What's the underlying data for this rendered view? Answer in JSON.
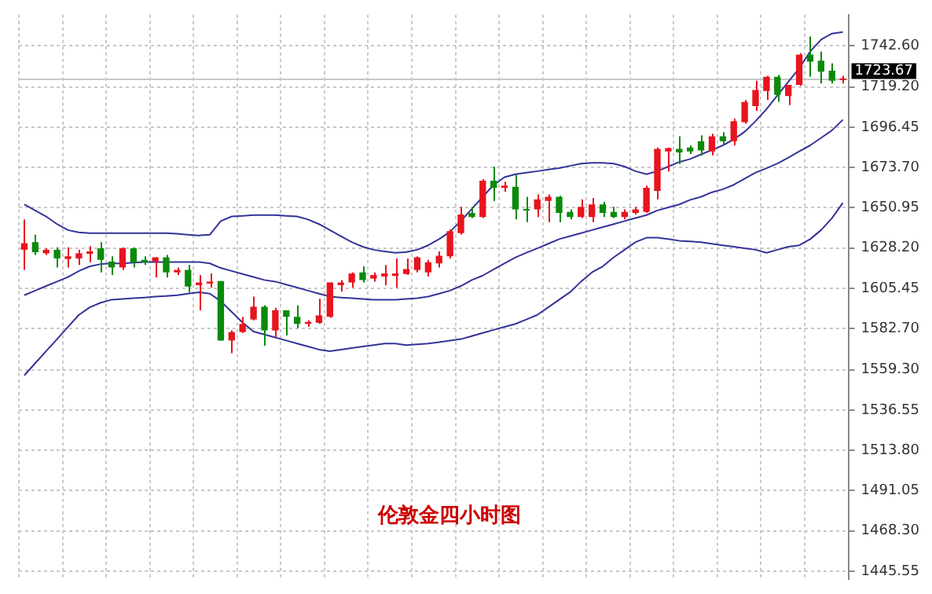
{
  "chart_data": {
    "type": "candlestick",
    "title": "伦敦金四小时图",
    "categories": [
      null,
      null,
      null,
      null,
      null,
      null,
      null,
      null,
      null,
      null,
      null,
      null,
      null,
      null,
      null,
      null,
      null,
      null,
      null,
      null,
      null,
      null,
      null,
      null,
      null,
      null,
      null,
      null,
      null,
      null,
      null,
      null,
      null,
      null,
      null,
      null,
      null,
      null,
      null,
      null,
      null,
      null,
      null,
      null,
      null,
      null,
      null,
      null,
      null,
      null,
      null,
      null,
      null,
      null,
      null,
      null,
      null,
      null,
      null,
      null,
      null,
      null,
      null,
      null,
      null,
      null,
      null,
      null,
      null,
      null,
      null,
      null,
      null,
      null,
      null,
      null
    ],
    "ohlc": [
      [
        1627.2,
        1644.3,
        1615.8,
        1630.9
      ],
      [
        1631.5,
        1635.7,
        1624.3,
        1625.8
      ],
      [
        1625.2,
        1628.0,
        1624.3,
        1627.2
      ],
      [
        1627.2,
        1628.6,
        1617.2,
        1622.3
      ],
      [
        1622.0,
        1628.6,
        1617.2,
        1623.5
      ],
      [
        1622.3,
        1627.2,
        1618.6,
        1625.2
      ],
      [
        1624.9,
        1629.2,
        1620.1,
        1626.3
      ],
      [
        1628.0,
        1631.5,
        1614.4,
        1621.5
      ],
      [
        1620.6,
        1623.5,
        1612.9,
        1617.2
      ],
      [
        1617.2,
        1628.6,
        1615.8,
        1628.0
      ],
      [
        1628.0,
        1628.6,
        1617.2,
        1620.1
      ],
      [
        1621.5,
        1623.5,
        1618.6,
        1620.1
      ],
      [
        1620.6,
        1622.9,
        1611.5,
        1622.9
      ],
      [
        1622.9,
        1624.3,
        1611.5,
        1614.4
      ],
      [
        1614.4,
        1617.2,
        1612.9,
        1615.8
      ],
      [
        1615.8,
        1618.6,
        1603.0,
        1606.4
      ],
      [
        1607.2,
        1612.9,
        1593.0,
        1608.7
      ],
      [
        1608.1,
        1613.8,
        1605.8,
        1609.2
      ],
      [
        1609.5,
        1609.5,
        1575.9,
        1575.9
      ],
      [
        1575.9,
        1581.6,
        1568.8,
        1580.7
      ],
      [
        1580.7,
        1589.3,
        1580.2,
        1585.3
      ],
      [
        1587.8,
        1600.7,
        1587.3,
        1595.0
      ],
      [
        1595.0,
        1595.8,
        1573.0,
        1581.6
      ],
      [
        1581.6,
        1594.4,
        1577.3,
        1593.0
      ],
      [
        1593.0,
        1593.0,
        1578.7,
        1589.3
      ],
      [
        1589.3,
        1595.8,
        1583.0,
        1585.3
      ],
      [
        1585.3,
        1587.3,
        1583.6,
        1586.4
      ],
      [
        1585.9,
        1599.5,
        1585.3,
        1590.1
      ],
      [
        1589.3,
        1608.7,
        1588.7,
        1608.7
      ],
      [
        1607.2,
        1610.1,
        1603.5,
        1608.7
      ],
      [
        1608.7,
        1614.4,
        1605.8,
        1613.8
      ],
      [
        1614.4,
        1617.8,
        1608.7,
        1610.1
      ],
      [
        1610.9,
        1614.4,
        1609.2,
        1612.9
      ],
      [
        1612.1,
        1618.6,
        1607.2,
        1613.8
      ],
      [
        1612.4,
        1622.3,
        1605.8,
        1613.8
      ],
      [
        1613.5,
        1622.3,
        1612.9,
        1616.3
      ],
      [
        1615.8,
        1623.5,
        1614.4,
        1622.9
      ],
      [
        1614.4,
        1621.5,
        1612.1,
        1620.1
      ],
      [
        1619.5,
        1626.3,
        1617.2,
        1623.8
      ],
      [
        1623.5,
        1638.6,
        1622.3,
        1637.7
      ],
      [
        1636.6,
        1651.4,
        1635.7,
        1647.1
      ],
      [
        1648.0,
        1651.4,
        1645.1,
        1645.7
      ],
      [
        1645.7,
        1667.1,
        1645.1,
        1666.2
      ],
      [
        1666.2,
        1674.2,
        1654.8,
        1662.2
      ],
      [
        1662.2,
        1665.7,
        1659.9,
        1663.4
      ],
      [
        1662.8,
        1669.9,
        1644.3,
        1650.0
      ],
      [
        1650.0,
        1657.1,
        1642.8,
        1649.4
      ],
      [
        1650.0,
        1658.5,
        1645.7,
        1655.7
      ],
      [
        1654.8,
        1658.5,
        1642.8,
        1657.1
      ],
      [
        1657.1,
        1657.7,
        1642.8,
        1648.0
      ],
      [
        1648.6,
        1650.0,
        1644.3,
        1645.7
      ],
      [
        1645.7,
        1655.7,
        1645.1,
        1651.4
      ],
      [
        1645.7,
        1656.5,
        1642.8,
        1652.8
      ],
      [
        1652.8,
        1654.2,
        1645.7,
        1648.0
      ],
      [
        1648.6,
        1651.4,
        1645.1,
        1645.7
      ],
      [
        1645.7,
        1650.0,
        1644.3,
        1648.6
      ],
      [
        1648.0,
        1651.4,
        1647.1,
        1650.0
      ],
      [
        1648.6,
        1663.4,
        1648.0,
        1662.2
      ],
      [
        1660.5,
        1685.0,
        1655.7,
        1684.2
      ],
      [
        1682.8,
        1685.0,
        1671.4,
        1684.7
      ],
      [
        1684.2,
        1691.3,
        1675.6,
        1682.2
      ],
      [
        1685.0,
        1686.2,
        1681.3,
        1682.8
      ],
      [
        1688.5,
        1691.9,
        1680.5,
        1683.3
      ],
      [
        1682.8,
        1692.7,
        1680.5,
        1691.3
      ],
      [
        1691.3,
        1693.6,
        1687.0,
        1688.5
      ],
      [
        1688.5,
        1701.3,
        1686.2,
        1699.9
      ],
      [
        1699.3,
        1711.8,
        1698.4,
        1710.7
      ],
      [
        1708.4,
        1722.7,
        1705.6,
        1717.5
      ],
      [
        1717.0,
        1725.5,
        1711.8,
        1724.9
      ],
      [
        1724.9,
        1726.1,
        1710.7,
        1714.7
      ],
      [
        1714.1,
        1720.4,
        1709.0,
        1720.4
      ],
      [
        1720.4,
        1738.3,
        1719.8,
        1737.5
      ],
      [
        1737.5,
        1747.7,
        1724.9,
        1733.5
      ],
      [
        1734.1,
        1739.2,
        1721.2,
        1727.8
      ],
      [
        1728.4,
        1732.6,
        1721.2,
        1722.7
      ],
      [
        1723.2,
        1725.5,
        1721.2,
        1723.67
      ]
    ],
    "colors": [
      "#e8141e",
      "#0a8a0a",
      "#e8141e",
      "#0a8a0a",
      "#e8141e",
      "#e8141e",
      "#e8141e",
      "#0a8a0a",
      "#0a8a0a",
      "#e8141e",
      "#0a8a0a",
      "#0a8a0a",
      "#e8141e",
      "#0a8a0a",
      "#e8141e",
      "#0a8a0a",
      "#e8141e",
      "#e8141e",
      "#0a8a0a",
      "#e8141e",
      "#e8141e",
      "#e8141e",
      "#0a8a0a",
      "#e8141e",
      "#0a8a0a",
      "#0a8a0a",
      "#e8141e",
      "#e8141e",
      "#e8141e",
      "#e8141e",
      "#e8141e",
      "#0a8a0a",
      "#e8141e",
      "#e8141e",
      "#e8141e",
      "#e8141e",
      "#e8141e",
      "#e8141e",
      "#e8141e",
      "#e8141e",
      "#e8141e",
      "#0a8a0a",
      "#e8141e",
      "#0a8a0a",
      "#e8141e",
      "#0a8a0a",
      "#0a8a0a",
      "#e8141e",
      "#e8141e",
      "#0a8a0a",
      "#0a8a0a",
      "#e8141e",
      "#e8141e",
      "#0a8a0a",
      "#0a8a0a",
      "#e8141e",
      "#e8141e",
      "#e8141e",
      "#e8141e",
      "#e8141e",
      "#0a8a0a",
      "#0a8a0a",
      "#0a8a0a",
      "#e8141e",
      "#0a8a0a",
      "#e8141e",
      "#e8141e",
      "#e8141e",
      "#e8141e",
      "#0a8a0a",
      "#e8141e",
      "#e8141e",
      "#0a8a0a",
      "#0a8a0a",
      "#0a8a0a",
      "#e8141e"
    ],
    "series": [
      {
        "type": "line",
        "color": "#33339a",
        "values": [
          1652.8,
          1649.4,
          1646.0,
          1641.7,
          1638.3,
          1637.0,
          1636.6,
          1636.6,
          1636.6,
          1636.6,
          1636.6,
          1636.6,
          1636.6,
          1636.6,
          1636.2,
          1635.7,
          1635.3,
          1635.7,
          1643.4,
          1646.0,
          1646.4,
          1646.8,
          1646.8,
          1646.8,
          1646.4,
          1646.0,
          1644.3,
          1641.7,
          1638.3,
          1634.9,
          1631.5,
          1628.9,
          1627.2,
          1626.3,
          1625.5,
          1625.9,
          1627.2,
          1629.7,
          1633.2,
          1637.4,
          1643.4,
          1650.3,
          1657.1,
          1663.9,
          1668.2,
          1669.9,
          1670.8,
          1671.6,
          1672.5,
          1673.3,
          1674.6,
          1675.9,
          1676.3,
          1676.3,
          1675.9,
          1674.2,
          1671.6,
          1669.9,
          1671.6,
          1674.2,
          1676.8,
          1678.5,
          1681.1,
          1683.6,
          1686.2,
          1689.6,
          1693.9,
          1699.9,
          1706.7,
          1714.4,
          1722.1,
          1729.8,
          1739.2,
          1746.0,
          1749.4,
          1750.3
        ]
      },
      {
        "type": "line",
        "color": "#33339a",
        "values": [
          1601.5,
          1604.1,
          1606.7,
          1609.2,
          1611.8,
          1615.2,
          1617.8,
          1619.1,
          1619.5,
          1619.5,
          1619.9,
          1620.3,
          1620.3,
          1620.3,
          1620.3,
          1620.3,
          1620.3,
          1619.5,
          1616.9,
          1615.2,
          1613.5,
          1611.8,
          1610.1,
          1609.2,
          1607.5,
          1605.8,
          1604.1,
          1602.4,
          1600.7,
          1600.2,
          1599.8,
          1599.4,
          1599.0,
          1599.0,
          1599.0,
          1599.4,
          1599.8,
          1600.7,
          1602.4,
          1604.1,
          1606.7,
          1610.1,
          1612.6,
          1616.1,
          1619.5,
          1622.9,
          1625.5,
          1628.0,
          1630.6,
          1633.2,
          1634.9,
          1636.6,
          1638.3,
          1640.0,
          1641.7,
          1643.4,
          1645.1,
          1646.8,
          1649.4,
          1651.1,
          1652.8,
          1655.4,
          1657.1,
          1659.7,
          1661.4,
          1663.9,
          1667.4,
          1670.8,
          1673.3,
          1675.9,
          1679.3,
          1682.8,
          1686.2,
          1690.4,
          1694.7,
          1700.7
        ]
      },
      {
        "type": "line",
        "color": "#33339a",
        "values": [
          1556.2,
          1563.1,
          1569.9,
          1576.7,
          1583.6,
          1590.4,
          1594.7,
          1597.3,
          1599.0,
          1599.4,
          1599.8,
          1600.2,
          1600.7,
          1601.1,
          1601.5,
          1602.4,
          1603.2,
          1602.4,
          1598.1,
          1592.1,
          1586.1,
          1581.0,
          1579.3,
          1577.6,
          1575.9,
          1574.2,
          1572.5,
          1570.8,
          1569.9,
          1570.8,
          1571.6,
          1572.5,
          1573.3,
          1574.2,
          1574.2,
          1573.3,
          1573.7,
          1574.2,
          1575.0,
          1575.9,
          1576.7,
          1578.4,
          1580.2,
          1581.9,
          1583.6,
          1585.3,
          1587.8,
          1590.4,
          1594.7,
          1599.0,
          1603.2,
          1609.2,
          1614.4,
          1617.8,
          1622.9,
          1627.2,
          1631.5,
          1634.0,
          1634.0,
          1633.2,
          1632.3,
          1631.9,
          1631.5,
          1630.6,
          1629.7,
          1628.9,
          1628.0,
          1627.2,
          1625.5,
          1627.2,
          1628.9,
          1629.7,
          1633.2,
          1638.3,
          1645.1,
          1653.7
        ]
      }
    ],
    "ylim": [
      1441,
      1760
    ],
    "yticks": [
      {
        "value": 1742.6,
        "label": "1742.60"
      },
      {
        "value": 1719.2,
        "label": "1719.20"
      },
      {
        "value": 1696.45,
        "label": "1696.45"
      },
      {
        "value": 1673.7,
        "label": "1673.70"
      },
      {
        "value": 1650.95,
        "label": "1650.95"
      },
      {
        "value": 1628.2,
        "label": "1628.20"
      },
      {
        "value": 1605.45,
        "label": "1605.45"
      },
      {
        "value": 1582.7,
        "label": "1582.70"
      },
      {
        "value": 1559.3,
        "label": "1559.30"
      },
      {
        "value": 1536.55,
        "label": "1536.55"
      },
      {
        "value": 1513.8,
        "label": "1513.80"
      },
      {
        "value": 1491.05,
        "label": "1491.05"
      },
      {
        "value": 1468.3,
        "label": "1468.30"
      },
      {
        "value": 1445.55,
        "label": "1445.55"
      }
    ],
    "ref_lines": [
      {
        "axis": "y",
        "value": 1723.67,
        "label": "1723.67",
        "color": "#c8c8c8"
      }
    ],
    "grid": true,
    "tick_labels": "y"
  }
}
